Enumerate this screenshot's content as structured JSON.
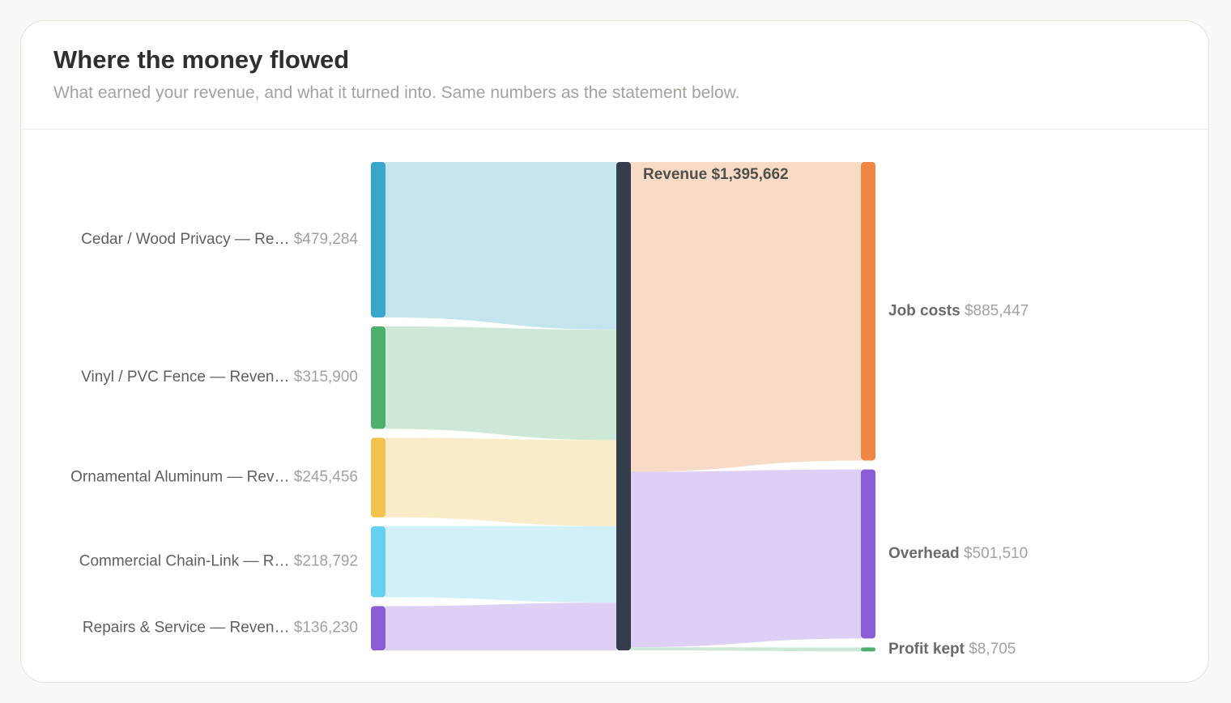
{
  "header": {
    "title": "Where the money flowed",
    "subtitle": "What earned your revenue, and what it turned into. Same numbers as the statement below."
  },
  "chart_data": {
    "type": "sankey",
    "title": "Where the money flowed",
    "center": {
      "name": "Revenue",
      "value_label": "$1,395,662",
      "value": 1395662,
      "color": "#333d4c"
    },
    "sources": [
      {
        "label": "Cedar / Wood Privacy — Re…",
        "value_label": "$479,284",
        "value": 479284,
        "color": "#3ba6cb",
        "flow_color": "#c5e5ee"
      },
      {
        "label": "Vinyl / PVC Fence — Reven…",
        "value_label": "$315,900",
        "value": 315900,
        "color": "#4caf6e",
        "flow_color": "#cde8d7"
      },
      {
        "label": "Ornamental Aluminum — Rev…",
        "value_label": "$245,456",
        "value": 245456,
        "color": "#f2c24e",
        "flow_color": "#f9ecc8"
      },
      {
        "label": "Commercial Chain-Link — R…",
        "value_label": "$218,792",
        "value": 218792,
        "color": "#66d0ef",
        "flow_color": "#d2f0f8"
      },
      {
        "label": "Repairs & Service — Reven…",
        "value_label": "$136,230",
        "value": 136230,
        "color": "#8b5cd6",
        "flow_color": "#ddd0f4"
      }
    ],
    "targets": [
      {
        "label": "Job costs",
        "value_label": "$885,447",
        "value": 885447,
        "color": "#ef8744",
        "flow_color": "#f8dbc7"
      },
      {
        "label": "Overhead",
        "value_label": "$501,510",
        "value": 501510,
        "color": "#8b5cd6",
        "flow_color": "#ddd0f4"
      },
      {
        "label": "Profit kept",
        "value_label": "$8,705",
        "value": 8705,
        "color": "#4caf6e",
        "flow_color": "#cde8d7"
      }
    ]
  }
}
